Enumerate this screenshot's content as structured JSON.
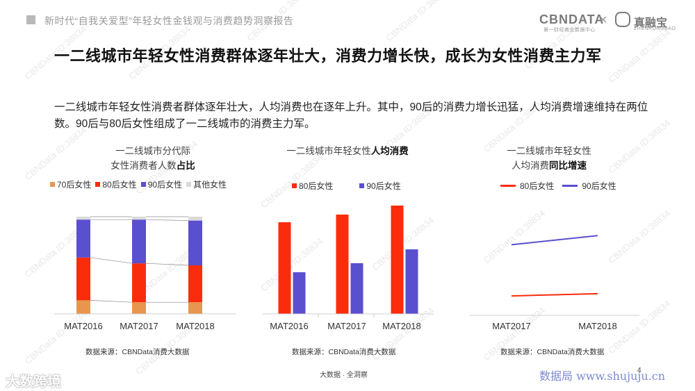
{
  "header": {
    "report_title": "新时代“自我关爱型”年轻女性金钱观与消费趋势洞察报告",
    "logo_primary": "CBNDATA",
    "logo_primary_sub": "第一财经商业数据中心",
    "logo_separator": "×",
    "logo_partner": "真融宝",
    "logo_partner_sub": "ZHENRONGBAO"
  },
  "page_title": "一二线城市年轻女性消费群体逐年壮大，消费力增长快，成长为女性消费主力军",
  "description": "一二线城市年轻女性消费者群体逐年壮大，人均消费也在逐年上升。其中，90后的消费力增长迅猛，人均消费增速维持在两位数。90后与80后女性组成了一二线城市的消费主力军。",
  "chart_data": [
    {
      "type": "bar",
      "stacked": true,
      "title_line1": "一二线城市分代际",
      "title_line2_prefix": "女性消费者人数",
      "title_line2_bold": "占比",
      "categories": [
        "MAT2016",
        "MAT2017",
        "MAT2018"
      ],
      "series": [
        {
          "name": "70后女性",
          "color": "#e8954f",
          "values": [
            14,
            12,
            12
          ]
        },
        {
          "name": "80后女性",
          "color": "#fb2c0c",
          "values": [
            44,
            40,
            38
          ]
        },
        {
          "name": "90后女性",
          "color": "#5a4fcf",
          "values": [
            39,
            45,
            46
          ]
        },
        {
          "name": "其他女性",
          "color": "#d9d9d9",
          "values": [
            3,
            3,
            4
          ]
        }
      ],
      "ylim": [
        0,
        100
      ],
      "grid": false,
      "connector_lines": true,
      "legend_position": "top",
      "source": "数据来源：CBNData消费大数据"
    },
    {
      "type": "bar",
      "title_prefix": "一二线城市年轻女性",
      "title_bold": "人均消费",
      "categories": [
        "MAT2016",
        "MAT2017",
        "MAT2018"
      ],
      "series": [
        {
          "name": "80后女性",
          "color": "#fb2c0c",
          "values": [
            132,
            143,
            156
          ]
        },
        {
          "name": "90后女性",
          "color": "#5a4fcf",
          "values": [
            60,
            73,
            93
          ]
        }
      ],
      "ylim": [
        0,
        160
      ],
      "grid": false,
      "legend_position": "top",
      "source": "数据来源：CBNData消费大数据"
    },
    {
      "type": "line",
      "title_line1": "一二线城市年轻女性",
      "title_line2_prefix": "人均消费",
      "title_line2_bold": "同比增速",
      "categories": [
        "MAT2017",
        "MAT2018"
      ],
      "series": [
        {
          "name": "80后女性",
          "color": "#fb2c0c",
          "values": [
            17,
            19
          ]
        },
        {
          "name": "90后女性",
          "color": "#5a4fcf",
          "values": [
            62,
            70
          ]
        }
      ],
      "ylim": [
        0,
        100
      ],
      "grid": false,
      "legend_position": "top",
      "source": "数据来源：CBNData消费大数据"
    }
  ],
  "watermark": "CBNData ID:38834",
  "footer": {
    "center": "大数据 · 全洞察",
    "left_brand": "大数跨境",
    "right_brand": "数据局 www.shujuju.cn",
    "page_number": "4"
  }
}
